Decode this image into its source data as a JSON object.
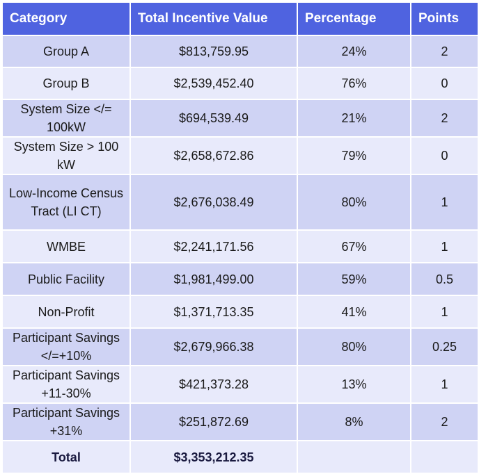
{
  "headers": [
    "Category",
    "Total Incentive Value",
    "Percentage",
    "Points"
  ],
  "rows": [
    {
      "category": "Group A",
      "value": "$813,759.95",
      "percentage": "24%",
      "points": "2"
    },
    {
      "category": "Group B",
      "value": "$2,539,452.40",
      "percentage": "76%",
      "points": "0"
    },
    {
      "category": "System Size </= 100kW",
      "value": "$694,539.49",
      "percentage": "21%",
      "points": "2"
    },
    {
      "category": "System Size > 100 kW",
      "value": "$2,658,672.86",
      "percentage": "79%",
      "points": "0"
    },
    {
      "category": "Low-Income Census Tract (LI CT)",
      "value": "$2,676,038.49",
      "percentage": "80%",
      "points": "1"
    },
    {
      "category": "WMBE",
      "value": "$2,241,171.56",
      "percentage": "67%",
      "points": "1"
    },
    {
      "category": "Public Facility",
      "value": "$1,981,499.00",
      "percentage": "59%",
      "points": "0.5"
    },
    {
      "category": "Non-Profit",
      "value": "$1,371,713.35",
      "percentage": "41%",
      "points": "1"
    },
    {
      "category": "Participant Savings </=+10%",
      "value": "$2,679,966.38",
      "percentage": "80%",
      "points": "0.25"
    },
    {
      "category": "Participant Savings +11-30%",
      "value": "$421,373.28",
      "percentage": "13%",
      "points": "1"
    },
    {
      "category": "Participant Savings +31%",
      "value": "$251,872.69",
      "percentage": "8%",
      "points": "2"
    }
  ],
  "total": {
    "label": "Total",
    "value": "$3,353,212.35",
    "percentage": "",
    "points": ""
  }
}
